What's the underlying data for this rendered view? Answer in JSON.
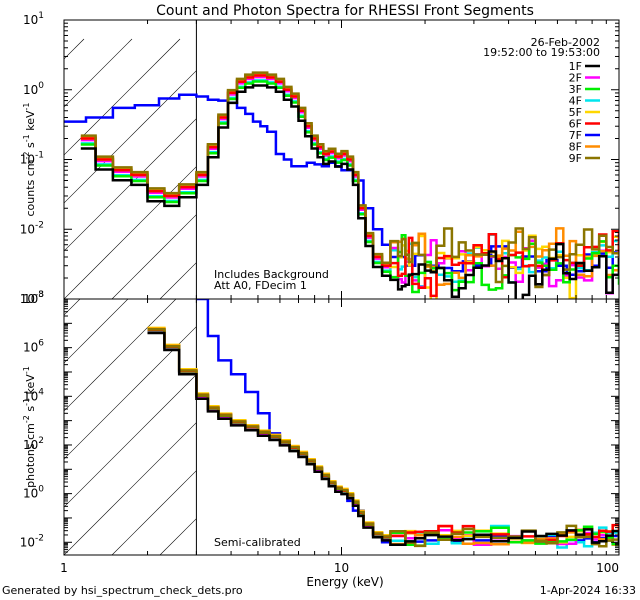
{
  "chart_data": {
    "type": "line",
    "title": "Count and Photon Spectra for RHESSI Front Segments",
    "xlabel": "Energy (keV)",
    "xscale": "log",
    "xlim": [
      1,
      100
    ],
    "x_ticks": [
      {
        "v": 1,
        "label": "1"
      },
      {
        "v": 10,
        "label": "10"
      },
      {
        "v": 100,
        "label": "100"
      }
    ],
    "threshold_keV": 3,
    "date": "26-Feb-2002",
    "time_range": "19:52:00 to 19:53:00",
    "footer_left": "Generated by hsi_spectrum_check_dets.pro",
    "footer_right": "1-Apr-2024 16:33",
    "series_names": [
      "1F",
      "2F",
      "3F",
      "4F",
      "5F",
      "6F",
      "7F",
      "8F",
      "9F"
    ],
    "series_colors": [
      "#000000",
      "#ff00ff",
      "#00ee00",
      "#00e5ee",
      "#ffd700",
      "#ff0000",
      "#0000ff",
      "#ff8c00",
      "#8b7500"
    ],
    "panels": [
      {
        "id": "counts",
        "ylim": [
          0.001,
          10
        ],
        "y_ticks": [
          {
            "v": 0.001,
            "base": "10",
            "exp": "-3"
          },
          {
            "v": 0.01,
            "base": "10",
            "exp": "-2"
          },
          {
            "v": 0.1,
            "base": "10",
            "exp": "-1"
          },
          {
            "v": 1,
            "base": "10",
            "exp": "0"
          },
          {
            "v": 10,
            "base": "10",
            "exp": "1"
          }
        ],
        "ylabel": {
          "a": "counts cm",
          "e1": "-2",
          "b": " s",
          "e2": "-1",
          "c": " keV",
          "e3": "-1"
        },
        "annotations": [
          "Includes Background",
          "Att A0, FDecim 1"
        ],
        "base": {
          "x": [
            1.15,
            1.3,
            1.5,
            1.75,
            2.0,
            2.3,
            2.6,
            3.0,
            3.3,
            3.6,
            3.9,
            4.2,
            4.5,
            4.8,
            5.1,
            5.4,
            5.8,
            6.2,
            6.6,
            7.0,
            7.4,
            7.8,
            8.2,
            8.6,
            9.0,
            9.5,
            10.0,
            10.5,
            11.0,
            11.5,
            12.2,
            13.0,
            14.0,
            15.0,
            16.0,
            17.0,
            18.0,
            20.0,
            22.0,
            25.0,
            28.0,
            32.0,
            36.0,
            40.0,
            45.0,
            50.0,
            56.0,
            63.0,
            70.0,
            80.0,
            90.0,
            100.0
          ],
          "y": [
            0.2,
            0.1,
            0.07,
            0.06,
            0.035,
            0.03,
            0.04,
            0.06,
            0.15,
            0.4,
            0.9,
            1.3,
            1.5,
            1.6,
            1.6,
            1.5,
            1.3,
            1.0,
            0.8,
            0.5,
            0.3,
            0.2,
            0.15,
            0.12,
            0.13,
            0.11,
            0.12,
            0.1,
            0.06,
            0.02,
            0.008,
            0.004,
            0.003,
            0.0035,
            0.003,
            0.0025,
            0.003,
            0.0028,
            0.003,
            0.0025,
            0.003,
            0.0028,
            0.0025,
            0.003,
            0.0028,
            0.0025,
            0.003,
            0.0025,
            0.003,
            0.0028,
            0.0025,
            0.003
          ]
        },
        "factors": [
          0.72,
          0.95,
          0.82,
          0.85,
          1.0,
          1.0,
          1.0,
          1.05,
          1.1
        ],
        "blue": {
          "x": [
            1.0,
            1.2,
            1.5,
            1.8,
            2.2,
            2.6,
            3.0,
            3.3,
            3.6,
            3.9,
            4.2,
            4.5,
            4.8,
            5.1,
            5.4,
            5.8,
            6.2,
            6.6,
            7.0,
            7.5,
            8.0,
            8.5,
            9.0,
            9.5,
            10.0,
            11.0,
            12.0,
            13.0,
            14.0,
            15.0,
            17.0,
            20.0,
            25.0,
            30.0,
            40.0,
            50.0,
            60.0,
            70.0,
            80.0,
            90.0,
            100.0
          ],
          "y": [
            0.35,
            0.4,
            0.55,
            0.6,
            0.75,
            0.85,
            0.8,
            0.72,
            0.7,
            0.65,
            0.55,
            0.45,
            0.35,
            0.3,
            0.25,
            0.12,
            0.1,
            0.08,
            0.08,
            0.09,
            0.085,
            0.08,
            0.09,
            0.08,
            0.07,
            0.05,
            0.02,
            0.01,
            0.006,
            0.004,
            0.003,
            0.003,
            0.0025,
            0.003,
            0.0028,
            0.0025,
            0.003,
            0.0025,
            0.003,
            0.0028,
            0.003
          ]
        }
      },
      {
        "id": "photons",
        "ylim": [
          0.003,
          100000000
        ],
        "y_ticks": [
          {
            "v": 0.01,
            "base": "10",
            "exp": "-2"
          },
          {
            "v": 1,
            "base": "10",
            "exp": "0"
          },
          {
            "v": 100,
            "base": "10",
            "exp": "2"
          },
          {
            "v": 10000,
            "base": "10",
            "exp": "4"
          },
          {
            "v": 1000000,
            "base": "10",
            "exp": "6"
          },
          {
            "v": 100000000,
            "base": "10",
            "exp": "8"
          }
        ],
        "ylabel": {
          "a": "photons cm",
          "e1": "-2",
          "b": " s",
          "e2": "-1",
          "c": " keV",
          "e3": "-1"
        },
        "annotations": [
          "Semi-calibrated"
        ],
        "base": {
          "x": [
            2.0,
            2.3,
            2.6,
            3.0,
            3.3,
            3.6,
            4.0,
            4.5,
            5.0,
            5.5,
            6.0,
            6.5,
            7.0,
            7.5,
            8.0,
            8.5,
            9.0,
            9.5,
            10.0,
            10.5,
            11.0,
            11.5,
            12.0,
            13.0,
            14.0,
            15.0,
            17.0,
            20.0,
            25.0,
            30.0,
            40.0,
            50.0,
            60.0,
            70.0,
            80.0,
            90.0,
            100.0
          ],
          "y": [
            5000000.0,
            1000000.0,
            100000.0,
            10000.0,
            3000.0,
            1500.0,
            800.0,
            500.0,
            300.0,
            200.0,
            120.0,
            70.0,
            40.0,
            20.0,
            10.0,
            5.0,
            2.5,
            1.5,
            1.2,
            0.8,
            0.4,
            0.15,
            0.05,
            0.02,
            0.015,
            0.012,
            0.012,
            0.015,
            0.012,
            0.015,
            0.012,
            0.014,
            0.012,
            0.015,
            0.012,
            0.014,
            0.015
          ]
        },
        "factors": [
          0.8,
          0.95,
          1.05,
          1.0,
          1.3,
          1.1,
          1.0,
          1.2,
          1.15
        ],
        "blue": {
          "x": [
            3.0,
            3.3,
            3.6,
            4.0,
            4.5,
            5.0,
            5.5,
            6.0,
            6.5,
            7.0,
            7.5,
            8.0,
            8.5,
            9.0,
            9.5,
            10.0,
            10.5,
            11.0,
            12.0,
            13.0,
            14.0,
            15.0,
            17.0,
            20.0,
            25.0,
            30.0,
            40.0,
            50.0,
            60.0,
            70.0,
            80.0,
            90.0,
            100.0
          ],
          "y": [
            100000000.0,
            3000000.0,
            300000.0,
            80000.0,
            15000.0,
            2000.0,
            300.0,
            150.0,
            80.0,
            40.0,
            20.0,
            10.0,
            5.0,
            2.5,
            1.5,
            1.0,
            0.5,
            0.2,
            0.05,
            0.02,
            0.01,
            0.008,
            0.01,
            0.012,
            0.01,
            0.012,
            0.01,
            0.012,
            0.01,
            0.012,
            0.01,
            0.012,
            0.012
          ]
        }
      }
    ]
  }
}
